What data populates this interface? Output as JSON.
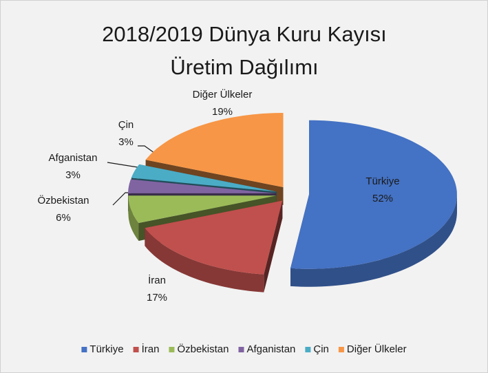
{
  "chart_data": {
    "type": "pie3d",
    "title": "2018/2019 Dünya Kuru Kayısı Üretim Dağılımı",
    "categories": [
      "Türkiye",
      "İran",
      "Özbekistan",
      "Afganistan",
      "Çin",
      "Diğer Ülkeler"
    ],
    "values": [
      52,
      17,
      6,
      3,
      3,
      19
    ],
    "value_labels": [
      "52%",
      "17%",
      "6%",
      "3%",
      "3%",
      "19%"
    ],
    "colors": [
      "#4472c4",
      "#c0504d",
      "#9bbb59",
      "#8064a2",
      "#4bacc6",
      "#f79646"
    ],
    "legend": "bottom"
  }
}
